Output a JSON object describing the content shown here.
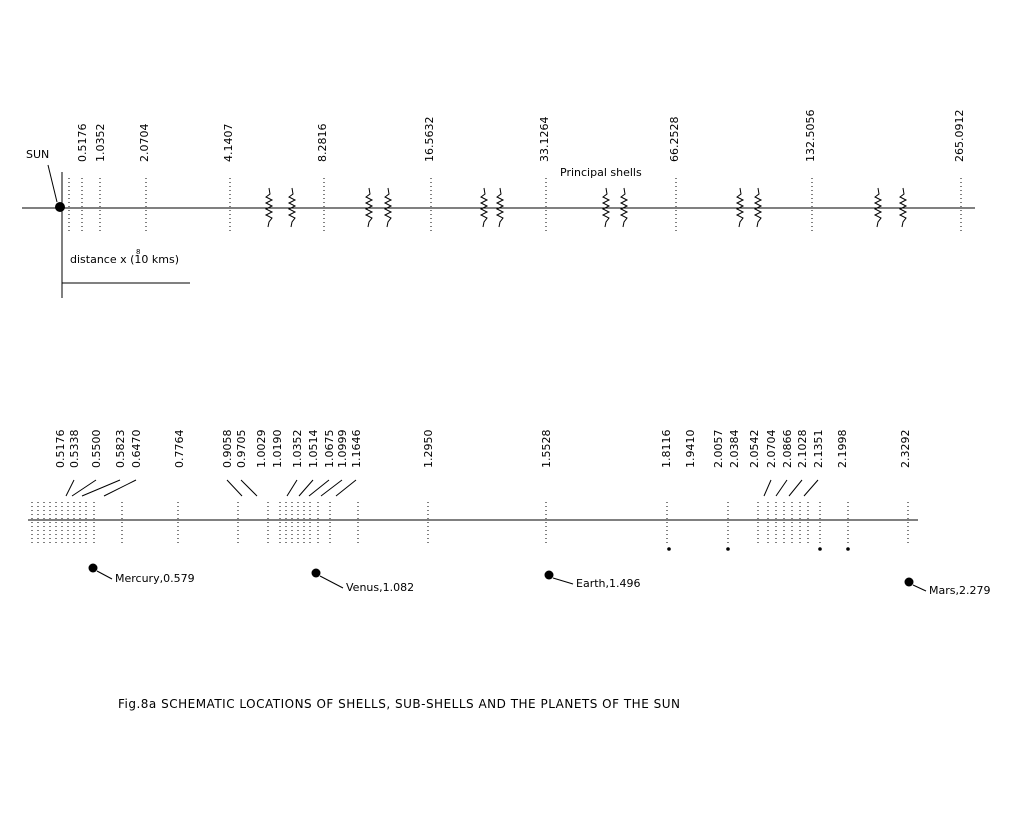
{
  "figure": {
    "sun_label": "SUN",
    "distance_label": "distance x (10  kms)",
    "distance_exponent": "8",
    "principal_shells_label": "Principal shells",
    "caption": "Fig.8a  SCHEMATIC LOCATIONS OF SHELLS, SUB-SHELLS AND THE PLANETS OF THE SUN"
  },
  "principal_shells": [
    "0.5176",
    "1.0352",
    "2.0704",
    "4.1407",
    "8.2816",
    "16.5632",
    "33.1264",
    "66.2528",
    "132.5056",
    "265.0912"
  ],
  "subshells": [
    "0.5176",
    "0.5338",
    "0.5500",
    "0.5823",
    "0.6470",
    "0.7764",
    "0.9058",
    "0.9705",
    "1.0029",
    "1.0190",
    "1.0352",
    "1.0514",
    "1.0675",
    "1.0999",
    "1.1646",
    "1.2950",
    "1.5528",
    "1.8116",
    "1.9410",
    "2.0057",
    "2.0384",
    "2.0542",
    "2.0704",
    "2.0866",
    "2.1028",
    "2.1351",
    "2.1998",
    "2.3292"
  ],
  "planets": [
    {
      "name": "Mercury",
      "distance": "0.579",
      "label": "Mercury,0.579"
    },
    {
      "name": "Venus",
      "distance": "1.082",
      "label": "Venus,1.082"
    },
    {
      "name": "Earth",
      "distance": "1.496",
      "label": "Earth,1.496"
    },
    {
      "name": "Mars",
      "distance": "2.279",
      "label": "Mars,2.279"
    }
  ]
}
